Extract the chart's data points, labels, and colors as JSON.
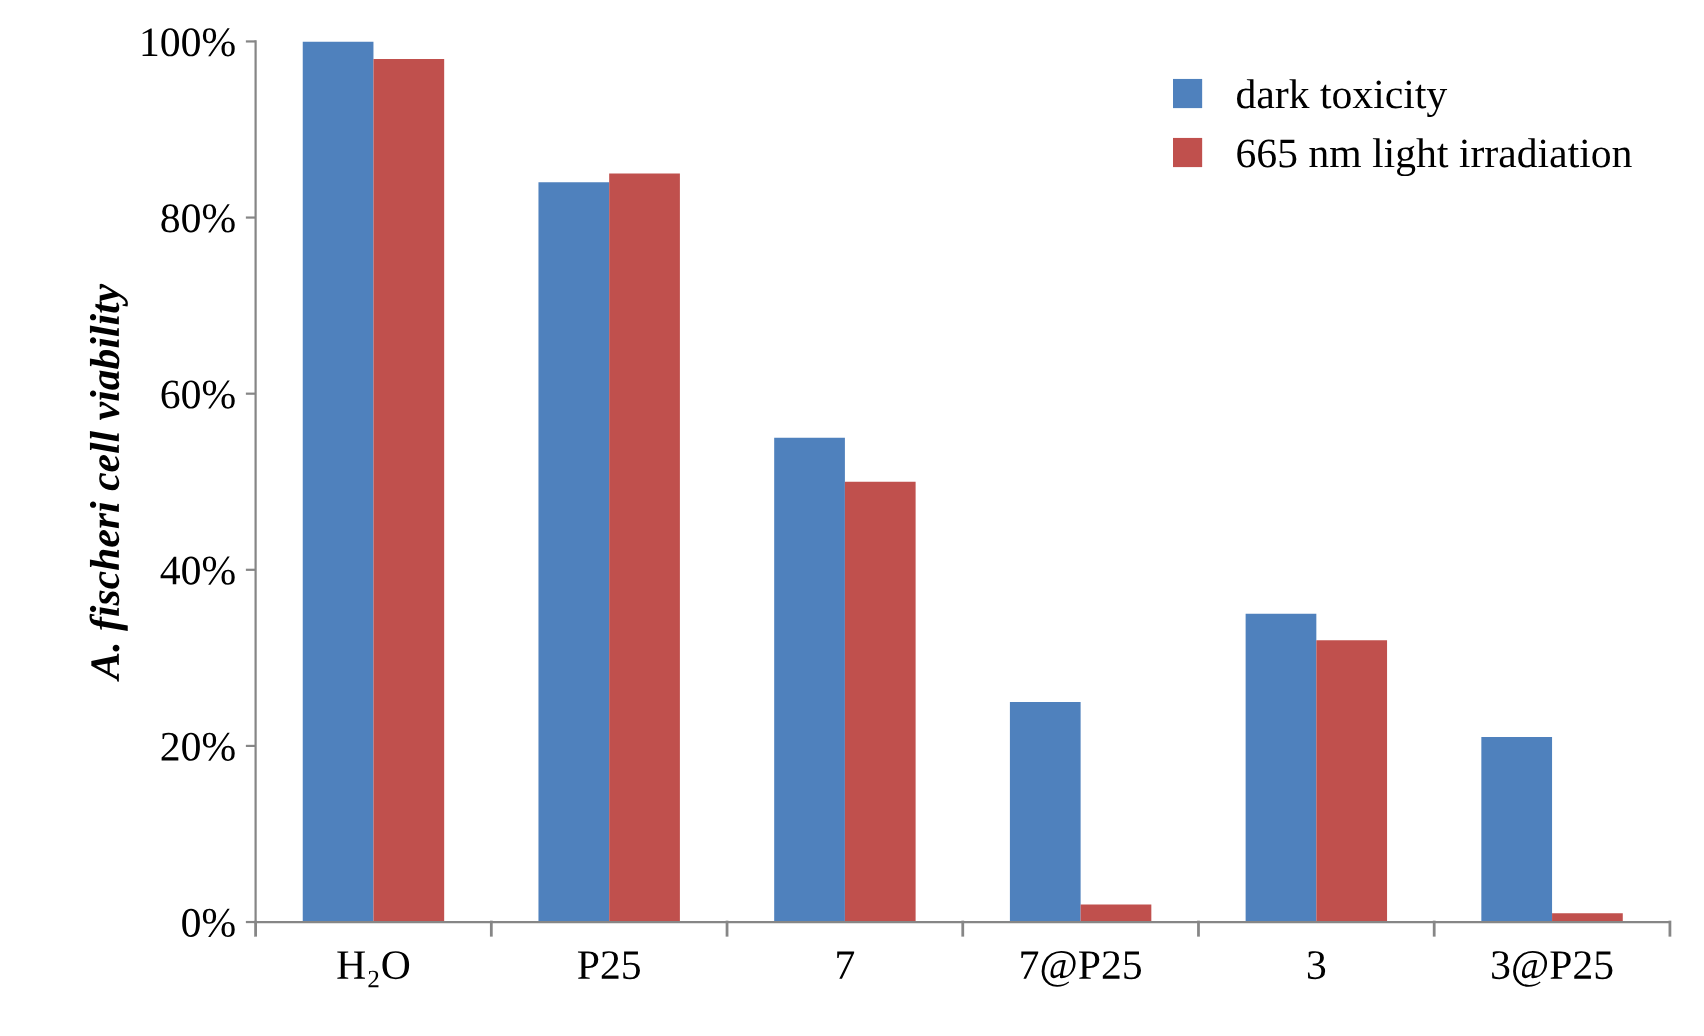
{
  "chart_data": {
    "type": "bar",
    "ylabel": "A. fischeri cell viability",
    "categories": [
      "H₂O",
      "P25",
      "7",
      "7@P25",
      "3",
      "3@P25"
    ],
    "series": [
      {
        "name": "dark toxicity",
        "color": "#4f81bd",
        "values": [
          100,
          84,
          55,
          25,
          35,
          21
        ]
      },
      {
        "name": "665 nm light irradiation",
        "color": "#c0504d",
        "values": [
          98,
          85,
          50,
          2,
          32,
          1
        ]
      }
    ],
    "ylim": [
      0,
      100
    ],
    "yticks": [
      {
        "value": 0,
        "label": "0%"
      },
      {
        "value": 20,
        "label": "20%"
      },
      {
        "value": 40,
        "label": "40%"
      },
      {
        "value": 60,
        "label": "60%"
      },
      {
        "value": 80,
        "label": "80%"
      },
      {
        "value": 100,
        "label": "100%"
      }
    ],
    "grid": false,
    "legend": "top right"
  }
}
